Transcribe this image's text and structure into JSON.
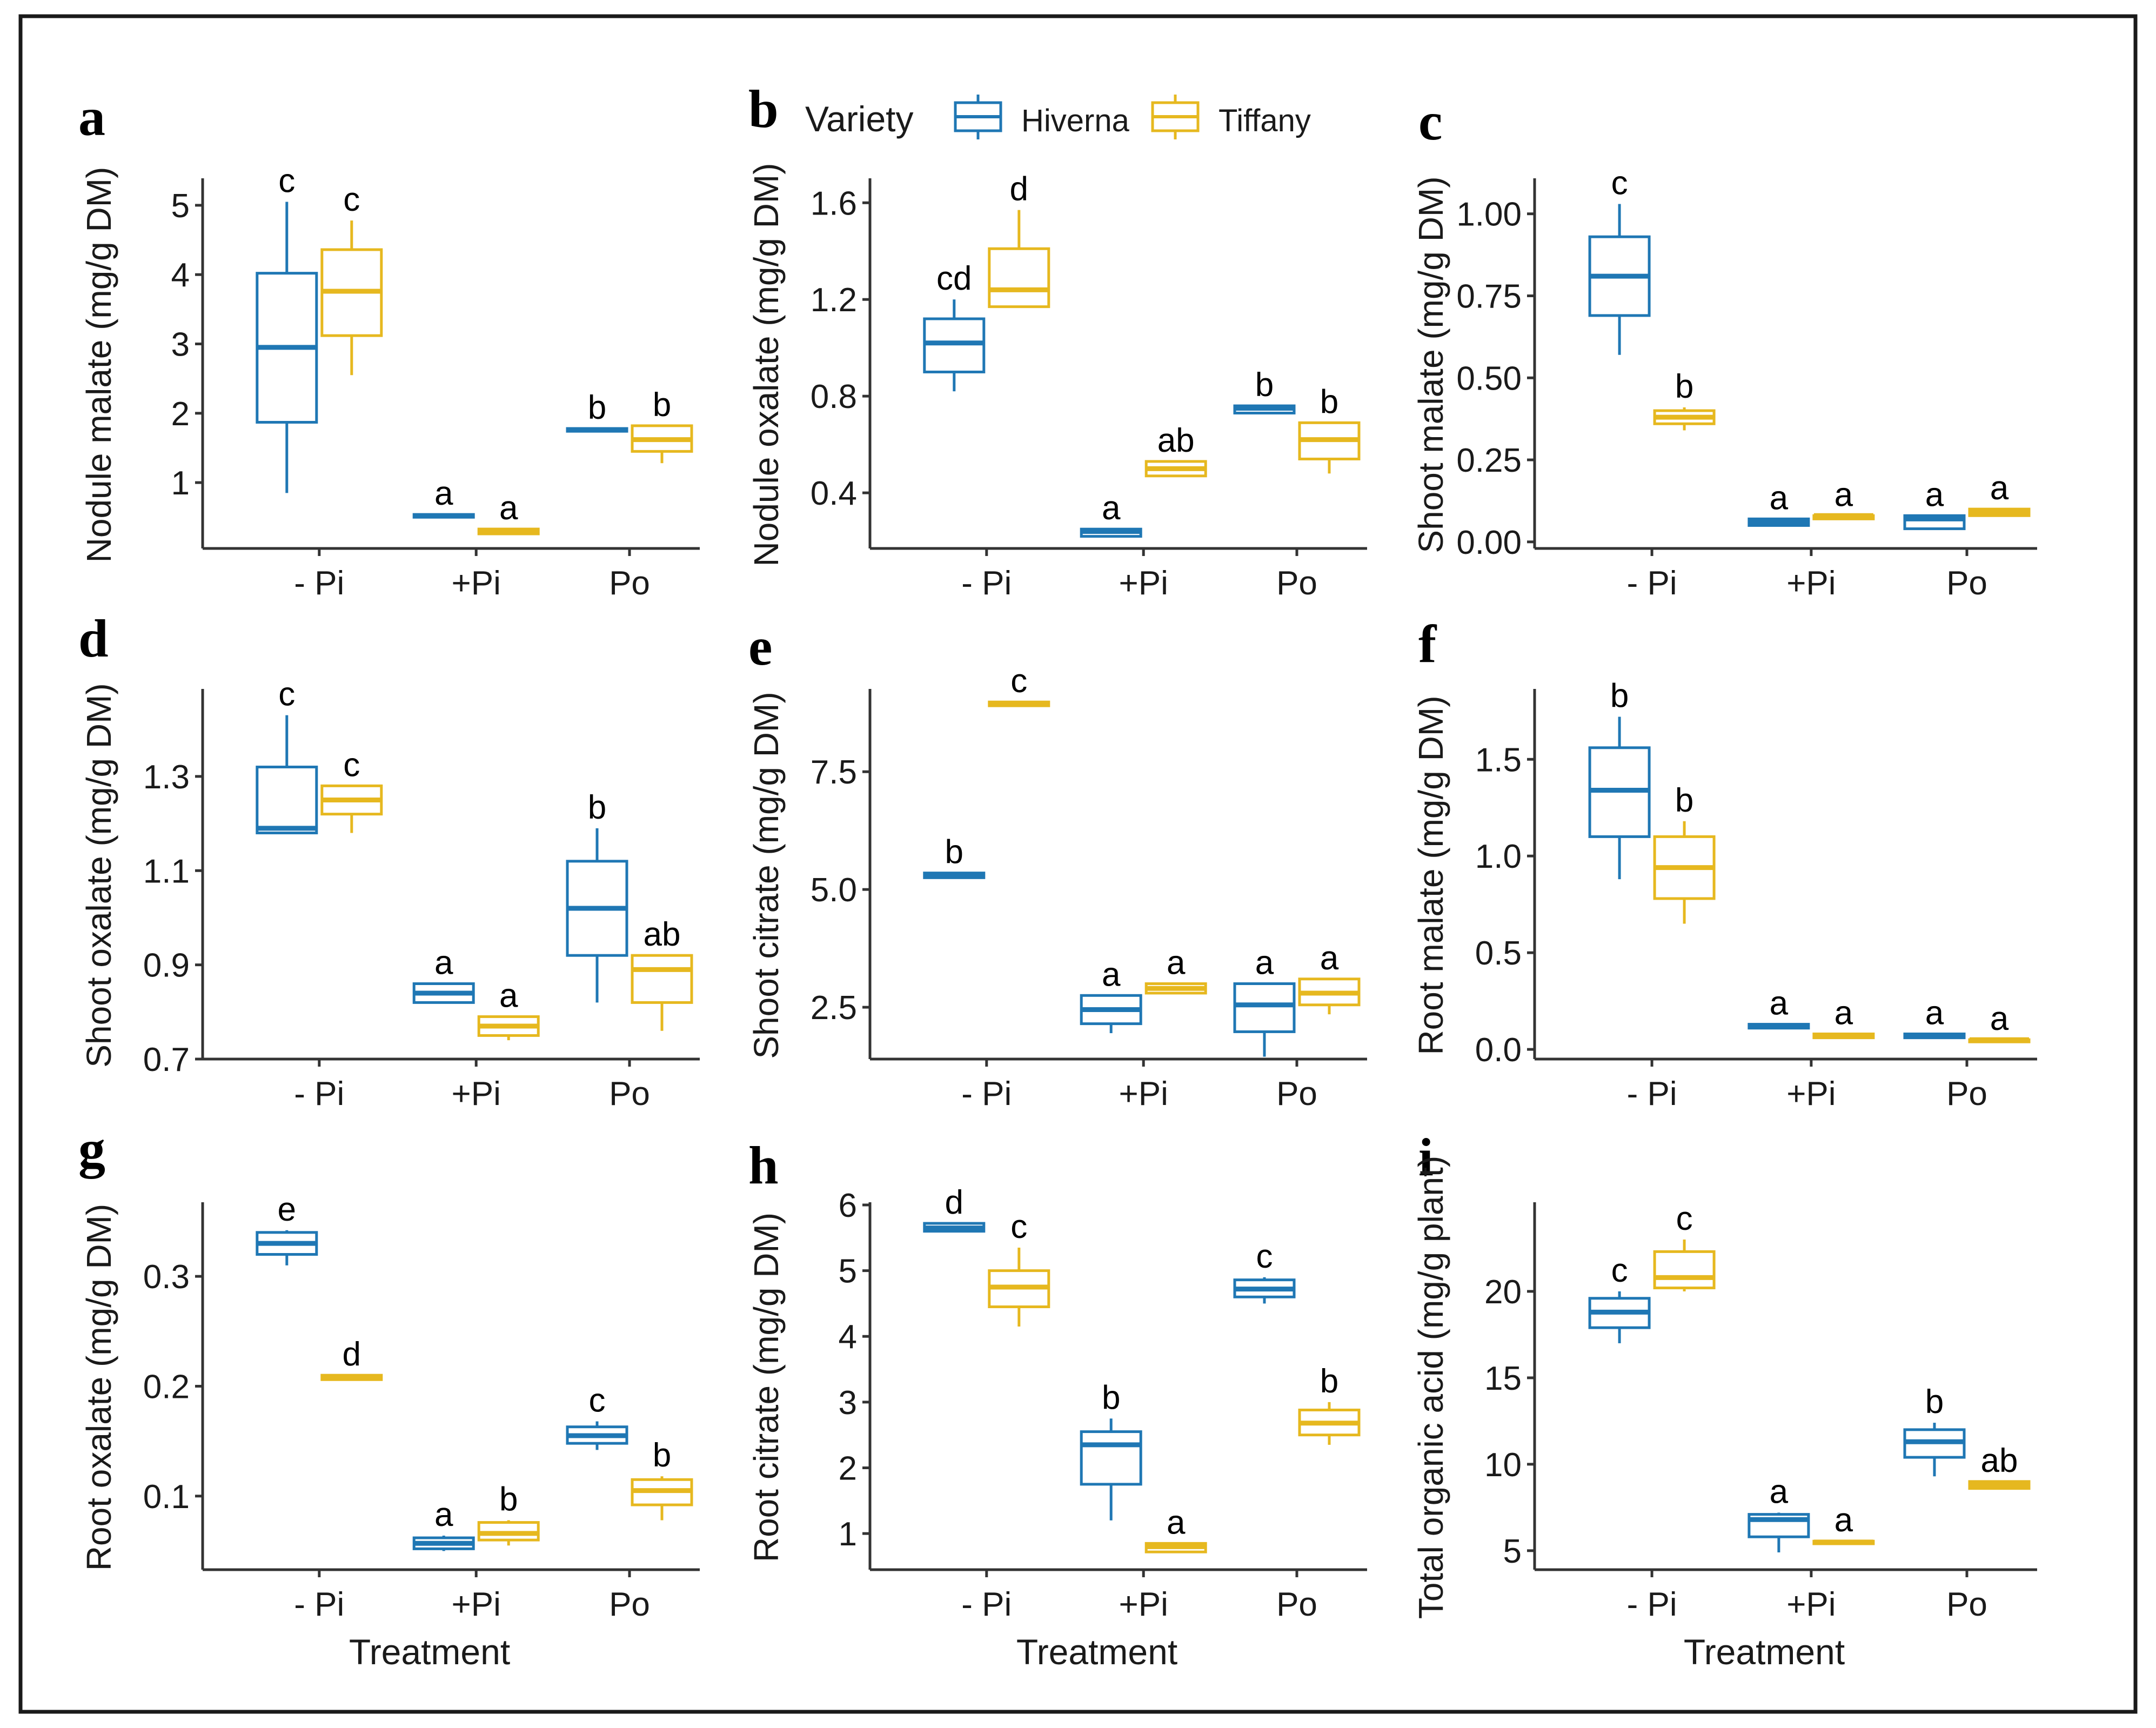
{
  "figure": {
    "x_title": "Treatment",
    "legend": {
      "title": "Variety",
      "entries": [
        {
          "name": "Hiverna",
          "color": "#1f77b4"
        },
        {
          "name": "Tiffany",
          "color": "#e6b81f"
        }
      ]
    }
  },
  "chart_data": [
    {
      "panel": "a",
      "type": "box",
      "ylabel": "Nodule malate (mg/g DM)",
      "ylim": [
        0.05,
        5.35
      ],
      "yticks": [
        1,
        2,
        3,
        4,
        5
      ],
      "yticklabels": [
        "1",
        "2",
        "3",
        "4",
        "5"
      ],
      "categories": [
        "- Pi",
        "+Pi",
        "Po"
      ],
      "show_xtitle": false,
      "series": [
        {
          "name": "Hiverna",
          "boxes": [
            [
              0.85,
              1.87,
              2.95,
              4.02,
              5.05
            ],
            [
              0.5,
              0.5,
              0.52,
              0.54,
              0.54
            ],
            [
              1.74,
              1.74,
              1.76,
              1.78,
              1.78
            ]
          ],
          "letters": [
            "c",
            "a",
            "b"
          ]
        },
        {
          "name": "Tiffany",
          "boxes": [
            [
              2.55,
              3.12,
              3.76,
              4.36,
              4.78
            ],
            [
              0.26,
              0.26,
              0.3,
              0.33,
              0.33
            ],
            [
              1.28,
              1.45,
              1.62,
              1.82,
              1.82
            ]
          ],
          "letters": [
            "c",
            "a",
            "b"
          ]
        }
      ]
    },
    {
      "panel": "b",
      "type": "box",
      "ylabel": "Nodule oxalate (mg/g DM)",
      "ylim": [
        0.17,
        1.69
      ],
      "yticks": [
        0.4,
        0.8,
        1.2,
        1.6
      ],
      "yticklabels": [
        "0.4",
        "0.8",
        "1.2",
        "1.6"
      ],
      "categories": [
        "- Pi",
        "+Pi",
        "Po"
      ],
      "show_xtitle": false,
      "series": [
        {
          "name": "Hiverna",
          "boxes": [
            [
              0.82,
              0.9,
              1.02,
              1.12,
              1.2
            ],
            [
              0.22,
              0.22,
              0.24,
              0.25,
              0.25
            ],
            [
              0.73,
              0.73,
              0.75,
              0.76,
              0.76
            ]
          ],
          "letters": [
            "cd",
            "a",
            "b"
          ]
        },
        {
          "name": "Tiffany",
          "boxes": [
            [
              1.17,
              1.17,
              1.24,
              1.41,
              1.57
            ],
            [
              0.47,
              0.47,
              0.5,
              0.53,
              0.53
            ],
            [
              0.48,
              0.54,
              0.62,
              0.69,
              0.69
            ]
          ],
          "letters": [
            "d",
            "ab",
            "b"
          ]
        }
      ]
    },
    {
      "panel": "c",
      "type": "box",
      "ylabel": "Shoot malate (mg/g DM)",
      "ylim": [
        -0.02,
        1.1
      ],
      "yticks": [
        0,
        0.25,
        0.5,
        0.75,
        1.0
      ],
      "yticklabels": [
        "0.00",
        "0.25",
        "0.50",
        "0.75",
        "1.00"
      ],
      "categories": [
        "- Pi",
        "+Pi",
        "Po"
      ],
      "show_xtitle": false,
      "series": [
        {
          "name": "Hiverna",
          "boxes": [
            [
              0.57,
              0.69,
              0.81,
              0.93,
              1.03
            ],
            [
              0.05,
              0.05,
              0.06,
              0.07,
              0.07
            ],
            [
              0.04,
              0.04,
              0.07,
              0.08,
              0.08
            ]
          ],
          "letters": [
            "c",
            "a",
            "a"
          ]
        },
        {
          "name": "Tiffany",
          "boxes": [
            [
              0.34,
              0.36,
              0.38,
              0.4,
              0.41
            ],
            [
              0.07,
              0.07,
              0.08,
              0.08,
              0.08
            ],
            [
              0.08,
              0.08,
              0.09,
              0.1,
              0.1
            ]
          ],
          "letters": [
            "b",
            "a",
            "a"
          ]
        }
      ]
    },
    {
      "panel": "d",
      "type": "box",
      "ylabel": "Shoot oxalate (mg/g DM)",
      "ylim": [
        0.7,
        1.48
      ],
      "yticks": [
        0.7,
        0.9,
        1.1,
        1.3
      ],
      "yticklabels": [
        "0.7",
        "0.9",
        "1.1",
        "1.3"
      ],
      "categories": [
        "- Pi",
        "+Pi",
        "Po"
      ],
      "show_xtitle": false,
      "series": [
        {
          "name": "Hiverna",
          "boxes": [
            [
              1.18,
              1.18,
              1.19,
              1.32,
              1.43
            ],
            [
              0.82,
              0.82,
              0.84,
              0.86,
              0.86
            ],
            [
              0.82,
              0.92,
              1.02,
              1.12,
              1.19
            ]
          ],
          "letters": [
            "c",
            "a",
            "b"
          ]
        },
        {
          "name": "Tiffany",
          "boxes": [
            [
              1.18,
              1.22,
              1.25,
              1.28,
              1.28
            ],
            [
              0.74,
              0.75,
              0.77,
              0.79,
              0.79
            ],
            [
              0.76,
              0.82,
              0.89,
              0.92,
              0.92
            ]
          ],
          "letters": [
            "c",
            "a",
            "ab"
          ]
        }
      ]
    },
    {
      "panel": "e",
      "type": "box",
      "ylabel": "Shoot citrate (mg/g DM)",
      "ylim": [
        1.4,
        9.2
      ],
      "yticks": [
        2.5,
        5.0,
        7.5
      ],
      "yticklabels": [
        "2.5",
        "5.0",
        "7.5"
      ],
      "categories": [
        "- Pi",
        "+Pi",
        "Po"
      ],
      "show_xtitle": false,
      "series": [
        {
          "name": "Hiverna",
          "boxes": [
            [
              5.25,
              5.25,
              5.3,
              5.35,
              5.35
            ],
            [
              1.95,
              2.15,
              2.45,
              2.75,
              2.75
            ],
            [
              1.45,
              1.98,
              2.55,
              3.0,
              3.0
            ]
          ],
          "letters": [
            "b",
            "a",
            "a"
          ]
        },
        {
          "name": "Tiffany",
          "boxes": [
            [
              8.9,
              8.9,
              8.95,
              8.98,
              8.98
            ],
            [
              2.8,
              2.8,
              2.9,
              3.0,
              3.0
            ],
            [
              2.35,
              2.55,
              2.8,
              3.1,
              3.1
            ]
          ],
          "letters": [
            "c",
            "a",
            "a"
          ]
        }
      ]
    },
    {
      "panel": "f",
      "type": "box",
      "ylabel": "Root malate (mg/g DM)",
      "ylim": [
        -0.05,
        1.85
      ],
      "yticks": [
        0,
        0.5,
        1.0,
        1.5
      ],
      "yticklabels": [
        "0.0",
        "0.5",
        "1.0",
        "1.5"
      ],
      "categories": [
        "- Pi",
        "+Pi",
        "Po"
      ],
      "show_xtitle": false,
      "series": [
        {
          "name": "Hiverna",
          "boxes": [
            [
              0.88,
              1.1,
              1.34,
              1.56,
              1.72
            ],
            [
              0.11,
              0.11,
              0.12,
              0.13,
              0.13
            ],
            [
              0.06,
              0.06,
              0.07,
              0.08,
              0.08
            ]
          ],
          "letters": [
            "b",
            "a",
            "a"
          ]
        },
        {
          "name": "Tiffany",
          "boxes": [
            [
              0.65,
              0.78,
              0.94,
              1.1,
              1.18
            ],
            [
              0.06,
              0.06,
              0.07,
              0.08,
              0.08
            ],
            [
              0.04,
              0.04,
              0.05,
              0.05,
              0.05
            ]
          ],
          "letters": [
            "b",
            "a",
            "a"
          ]
        }
      ]
    },
    {
      "panel": "g",
      "type": "box",
      "ylabel": "Root oxalate (mg/g DM)",
      "ylim": [
        0.033,
        0.365
      ],
      "yticks": [
        0.1,
        0.2,
        0.3
      ],
      "yticklabels": [
        "0.1",
        "0.2",
        "0.3"
      ],
      "categories": [
        "- Pi",
        "+Pi",
        "Po"
      ],
      "show_xtitle": true,
      "series": [
        {
          "name": "Hiverna",
          "boxes": [
            [
              0.31,
              0.32,
              0.33,
              0.34,
              0.342
            ],
            [
              0.05,
              0.052,
              0.057,
              0.062,
              0.064
            ],
            [
              0.142,
              0.148,
              0.155,
              0.163,
              0.168
            ]
          ],
          "letters": [
            "e",
            "a",
            "c"
          ]
        },
        {
          "name": "Tiffany",
          "boxes": [
            [
              0.206,
              0.206,
              0.208,
              0.21,
              0.21
            ],
            [
              0.055,
              0.06,
              0.066,
              0.076,
              0.078
            ],
            [
              0.078,
              0.092,
              0.105,
              0.115,
              0.118
            ]
          ],
          "letters": [
            "d",
            "b",
            "b"
          ]
        }
      ]
    },
    {
      "panel": "h",
      "type": "box",
      "ylabel": "Root citrate (mg/g DM)",
      "ylim": [
        0.45,
        6.0
      ],
      "yticks": [
        1,
        2,
        3,
        4,
        5,
        6
      ],
      "yticklabels": [
        "1",
        "2",
        "3",
        "4",
        "5",
        "6"
      ],
      "categories": [
        "- Pi",
        "+Pi",
        "Po"
      ],
      "show_xtitle": true,
      "series": [
        {
          "name": "Hiverna",
          "boxes": [
            [
              5.6,
              5.6,
              5.65,
              5.72,
              5.72
            ],
            [
              1.2,
              1.75,
              2.35,
              2.55,
              2.75
            ],
            [
              4.5,
              4.6,
              4.72,
              4.86,
              4.9
            ]
          ],
          "letters": [
            "d",
            "b",
            "c"
          ]
        },
        {
          "name": "Tiffany",
          "boxes": [
            [
              4.15,
              4.45,
              4.75,
              5.0,
              5.35
            ],
            [
              0.72,
              0.72,
              0.8,
              0.85,
              0.85
            ],
            [
              2.35,
              2.5,
              2.68,
              2.88,
              3.0
            ]
          ],
          "letters": [
            "c",
            "a",
            "b"
          ]
        }
      ]
    },
    {
      "panel": "i",
      "type": "box",
      "ylabel": "Total organic acid (mg/g plant)",
      "ylim": [
        3.9,
        25.0
      ],
      "yticks": [
        5,
        10,
        15,
        20
      ],
      "yticklabels": [
        "5",
        "10",
        "15",
        "20"
      ],
      "categories": [
        "- Pi",
        "+Pi",
        "Po"
      ],
      "show_xtitle": true,
      "series": [
        {
          "name": "Hiverna",
          "boxes": [
            [
              17.0,
              17.9,
              18.8,
              19.6,
              20.0
            ],
            [
              4.9,
              5.8,
              6.8,
              7.1,
              7.2
            ],
            [
              9.3,
              10.4,
              11.3,
              12.0,
              12.4
            ]
          ],
          "letters": [
            "c",
            "a",
            "b"
          ]
        },
        {
          "name": "Tiffany",
          "boxes": [
            [
              20.0,
              20.2,
              20.8,
              22.3,
              23.0
            ],
            [
              5.4,
              5.4,
              5.5,
              5.55,
              5.55
            ],
            [
              8.6,
              8.6,
              8.8,
              9.0,
              9.0
            ]
          ],
          "letters": [
            "c",
            "a",
            "ab"
          ]
        }
      ]
    }
  ]
}
